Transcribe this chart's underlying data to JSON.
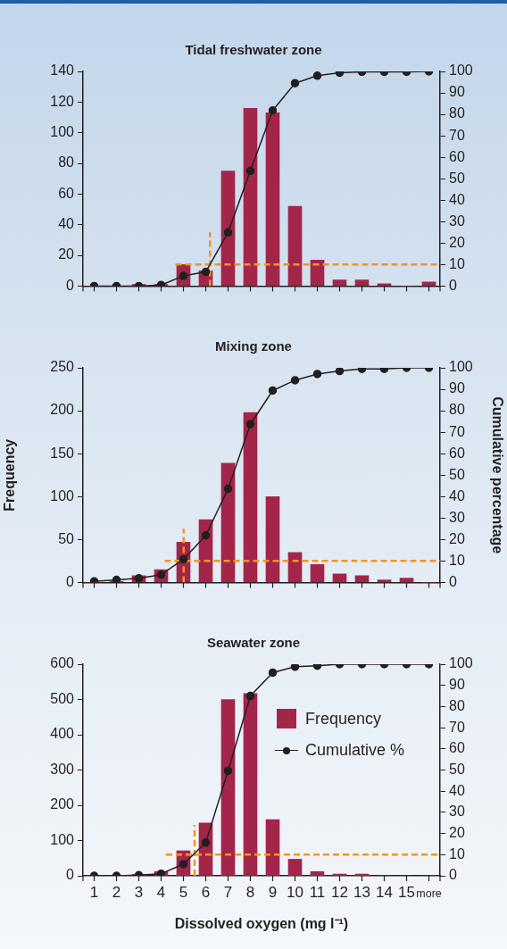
{
  "chart_data": [
    {
      "type": "bar",
      "title": "Tidal freshwater zone",
      "x": [
        1,
        2,
        3,
        4,
        5,
        6,
        7,
        8,
        9,
        10,
        11,
        12,
        13,
        14,
        15,
        16
      ],
      "xlim": [
        0.5,
        16.5
      ],
      "xticks": [
        {
          "value": 0.5,
          "label": null
        },
        1,
        2,
        3,
        4,
        5,
        6,
        7,
        8,
        9,
        10,
        11,
        12,
        13,
        14,
        15,
        16,
        {
          "value": 16.5,
          "label": null
        }
      ],
      "ylim": [
        0,
        140
      ],
      "yticks": [
        0,
        20,
        40,
        60,
        80,
        100,
        120,
        140
      ],
      "y2lim": [
        0,
        100
      ],
      "y2ticks": [
        0,
        10,
        20,
        30,
        40,
        50,
        60,
        70,
        80,
        90,
        100
      ],
      "tick_labels": "y",
      "legend": false,
      "grid": false,
      "series": [
        {
          "color": "#a3264a",
          "values": [
            0,
            0,
            1,
            1,
            14,
            10,
            75,
            116,
            113,
            52,
            17,
            4,
            4,
            1.5,
            0,
            2.7
          ]
        },
        {
          "type": "line",
          "axis": "y2",
          "color": "#231f20",
          "marker": "circle",
          "values": [
            0,
            0,
            0,
            0.5,
            4.7,
            6.6,
            25,
            53.7,
            81.8,
            94.5,
            98,
            99.4,
            99.8,
            99.8,
            99.8,
            100
          ]
        },
        {
          "type": "line",
          "axis": "y2",
          "color": "#f7941d",
          "marker": "none",
          "line_style": "dashed",
          "x": [
            4.64,
            16.5
          ],
          "values": [
            10,
            10
          ]
        },
        {
          "type": "line",
          "axis": "y2",
          "color": "#f7941d",
          "marker": "none",
          "line_style": "dashed",
          "x": [
            6.19,
            6.19
          ],
          "values": [
            0,
            25
          ]
        }
      ]
    },
    {
      "type": "bar",
      "title": "Mixing zone",
      "ylabel": "Frequency",
      "y2label": "Cumulative percentage",
      "x": [
        1,
        2,
        3,
        4,
        5,
        6,
        7,
        8,
        9,
        10,
        11,
        12,
        13,
        14,
        15,
        16
      ],
      "xlim": [
        0.5,
        16.5
      ],
      "xticks": [
        {
          "value": 0.5,
          "label": null
        },
        1,
        2,
        3,
        4,
        5,
        6,
        7,
        8,
        9,
        10,
        11,
        12,
        13,
        14,
        15,
        16,
        {
          "value": 16.5,
          "label": null
        }
      ],
      "ylim": [
        0,
        250
      ],
      "yticks": [
        0,
        50,
        100,
        150,
        200,
        250
      ],
      "y2lim": [
        0,
        100
      ],
      "y2ticks": [
        0,
        10,
        20,
        30,
        40,
        50,
        60,
        70,
        80,
        90,
        100
      ],
      "tick_labels": "y",
      "legend": false,
      "grid": false,
      "series": [
        {
          "color": "#a3264a",
          "values": [
            0,
            1,
            8,
            15,
            47,
            73,
            139,
            198,
            100,
            35,
            21,
            10,
            8,
            3,
            5,
            0
          ]
        },
        {
          "type": "line",
          "axis": "y2",
          "color": "#231f20",
          "marker": "circle",
          "values": [
            0.5,
            1.2,
            1.9,
            3.6,
            10.8,
            21.9,
            43.6,
            73.7,
            89.4,
            94.2,
            97.1,
            98.5,
            99.5,
            99.5,
            100,
            100
          ]
        },
        {
          "type": "line",
          "axis": "y2",
          "color": "#f7941d",
          "marker": "none",
          "line_style": "dashed",
          "x": [
            4.16,
            16.5
          ],
          "values": [
            10,
            10
          ]
        },
        {
          "type": "line",
          "axis": "y2",
          "color": "#f7941d",
          "marker": "none",
          "line_style": "dashed",
          "x": [
            5.01,
            5.01
          ],
          "values": [
            0,
            25
          ]
        }
      ]
    },
    {
      "type": "bar",
      "title": "Seawater zone",
      "xlabel": "Dissolved oxygen (mg l⁻¹)",
      "x": [
        1,
        2,
        3,
        4,
        5,
        6,
        7,
        8,
        9,
        10,
        11,
        12,
        13,
        14,
        15,
        16
      ],
      "xlim": [
        0.5,
        16.5
      ],
      "xticks": [
        {
          "value": 0.5,
          "label": null
        },
        1,
        2,
        3,
        4,
        5,
        6,
        7,
        8,
        9,
        10,
        11,
        12,
        13,
        14,
        15,
        {
          "value": 16,
          "label": "more"
        },
        {
          "value": 16.5,
          "label": null
        }
      ],
      "ylim": [
        0,
        600
      ],
      "yticks": [
        0,
        100,
        200,
        300,
        400,
        500,
        600
      ],
      "y2lim": [
        0,
        100
      ],
      "y2ticks": [
        0,
        10,
        20,
        30,
        40,
        50,
        60,
        70,
        80,
        90,
        100
      ],
      "legend": "top right",
      "grid": false,
      "series": [
        {
          "name": "Frequency",
          "color": "#a3264a",
          "values": [
            0,
            0,
            4,
            12,
            71,
            150,
            500,
            517,
            159,
            47,
            12,
            5,
            5,
            0,
            0,
            0
          ]
        },
        {
          "type": "line",
          "name": "Cumulative %",
          "axis": "y2",
          "color": "#231f20",
          "marker": "circle",
          "values": [
            0,
            0,
            0.3,
            1,
            5.5,
            15.7,
            49.6,
            85,
            96,
            98.8,
            99.3,
            100,
            100,
            100,
            100,
            100
          ]
        },
        {
          "type": "line",
          "axis": "y2",
          "color": "#f7941d",
          "marker": "none",
          "line_style": "dashed",
          "x": [
            4.22,
            16.5
          ],
          "values": [
            10,
            10
          ]
        },
        {
          "type": "line",
          "axis": "y2",
          "color": "#f7941d",
          "marker": "none",
          "line_style": "dashed",
          "x": [
            5.5,
            5.5
          ],
          "values": [
            0,
            24
          ]
        }
      ]
    }
  ]
}
